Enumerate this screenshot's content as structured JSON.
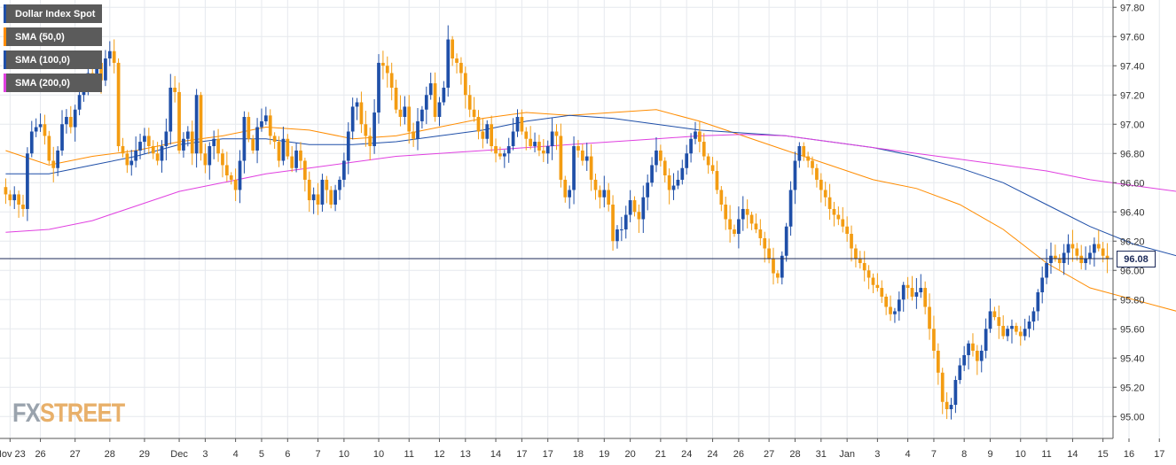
{
  "chart_data": {
    "type": "candlestick",
    "title": "Dollar Index Spot",
    "y_ticks": [
      "97.80",
      "97.60",
      "97.40",
      "97.20",
      "97.00",
      "96.80",
      "96.60",
      "96.40",
      "96.20",
      "96.00",
      "95.80",
      "95.60",
      "95.40",
      "95.20",
      "95.00"
    ],
    "ylim": [
      94.85,
      97.85
    ],
    "current_price": 96.08,
    "current_price_label": "96.08",
    "x_ticks": [
      {
        "label": "Nov 23",
        "i": 1
      },
      {
        "label": "26",
        "i": 8
      },
      {
        "label": "27",
        "i": 16
      },
      {
        "label": "28",
        "i": 24
      },
      {
        "label": "29",
        "i": 32
      },
      {
        "label": "Dec",
        "i": 40
      },
      {
        "label": "3",
        "i": 46
      },
      {
        "label": "4",
        "i": 53
      },
      {
        "label": "5",
        "i": 59
      },
      {
        "label": "6",
        "i": 65
      },
      {
        "label": "7",
        "i": 72
      },
      {
        "label": "10",
        "i": 78
      },
      {
        "label": "10",
        "i": 86
      },
      {
        "label": "11",
        "i": 93
      },
      {
        "label": "12",
        "i": 100
      },
      {
        "label": "13",
        "i": 106
      },
      {
        "label": "14",
        "i": 113
      },
      {
        "label": "17",
        "i": 119
      },
      {
        "label": "17",
        "i": 125
      },
      {
        "label": "18",
        "i": 132
      },
      {
        "label": "19",
        "i": 138
      },
      {
        "label": "20",
        "i": 144
      },
      {
        "label": "21",
        "i": 151
      },
      {
        "label": "24",
        "i": 157
      },
      {
        "label": "24",
        "i": 163
      },
      {
        "label": "26",
        "i": 169
      },
      {
        "label": "27",
        "i": 176
      },
      {
        "label": "28",
        "i": 182
      },
      {
        "label": "31",
        "i": 188
      },
      {
        "label": "Jan",
        "i": 194
      },
      {
        "label": "3",
        "i": 201
      },
      {
        "label": "4",
        "i": 208
      },
      {
        "label": "7",
        "i": 214
      },
      {
        "label": "8",
        "i": 221
      },
      {
        "label": "9",
        "i": 227
      },
      {
        "label": "10",
        "i": 234
      },
      {
        "label": "11",
        "i": 240
      },
      {
        "label": "14",
        "i": 246
      },
      {
        "label": "15",
        "i": 253
      },
      {
        "label": "16",
        "i": 259
      },
      {
        "label": "17",
        "i": 266
      },
      {
        "label": "18",
        "i": 272
      }
    ],
    "candles_close": [
      96.52,
      96.48,
      96.52,
      96.45,
      96.42,
      96.8,
      96.95,
      96.98,
      97.0,
      96.92,
      96.75,
      96.7,
      96.82,
      97.0,
      97.05,
      96.98,
      97.1,
      97.2,
      97.28,
      97.35,
      97.32,
      97.42,
      97.3,
      97.45,
      97.5,
      97.42,
      96.85,
      96.8,
      96.72,
      96.75,
      96.82,
      96.88,
      96.92,
      96.85,
      96.8,
      96.75,
      96.85,
      96.95,
      97.25,
      97.22,
      96.82,
      96.9,
      96.95,
      96.8,
      97.2,
      96.8,
      96.72,
      96.85,
      96.9,
      96.8,
      96.72,
      96.65,
      96.62,
      96.55,
      96.75,
      97.05,
      96.9,
      96.82,
      96.98,
      97.02,
      97.06,
      96.92,
      96.88,
      96.75,
      96.9,
      96.78,
      96.7,
      96.82,
      96.75,
      96.62,
      96.48,
      96.52,
      96.45,
      96.62,
      96.55,
      96.45,
      96.55,
      96.62,
      96.75,
      96.95,
      97.12,
      97.15,
      97.0,
      96.92,
      96.85,
      97.08,
      97.42,
      97.4,
      97.35,
      97.25,
      97.1,
      97.05,
      97.12,
      96.95,
      96.9,
      97.02,
      97.1,
      97.2,
      97.28,
      97.05,
      97.15,
      97.25,
      97.58,
      97.45,
      97.42,
      97.35,
      97.2,
      97.1,
      97.05,
      96.95,
      96.9,
      97.0,
      96.85,
      96.8,
      96.78,
      96.8,
      96.85,
      96.95,
      97.05,
      96.95,
      96.9,
      96.85,
      96.88,
      96.82,
      96.8,
      96.85,
      96.95,
      96.92,
      96.62,
      96.5,
      96.55,
      96.85,
      96.82,
      96.75,
      96.78,
      96.62,
      96.55,
      96.5,
      96.55,
      96.45,
      96.2,
      96.28,
      96.28,
      96.38,
      96.48,
      96.4,
      96.35,
      96.5,
      96.6,
      96.72,
      96.82,
      96.75,
      96.65,
      96.55,
      96.58,
      96.62,
      96.7,
      96.8,
      96.9,
      96.95,
      96.88,
      96.78,
      96.72,
      96.68,
      96.55,
      96.45,
      96.35,
      96.28,
      96.25,
      96.35,
      96.42,
      96.38,
      96.32,
      96.28,
      96.22,
      96.15,
      96.08,
      95.98,
      95.95,
      96.1,
      96.3,
      96.55,
      96.75,
      96.85,
      96.78,
      96.75,
      96.7,
      96.62,
      96.55,
      96.5,
      96.42,
      96.38,
      96.35,
      96.3,
      96.25,
      96.15,
      96.08,
      96.05,
      96.0,
      95.95,
      95.9,
      95.88,
      95.82,
      95.75,
      95.7,
      95.72,
      95.8,
      95.9,
      95.88,
      95.82,
      95.85,
      95.88,
      95.75,
      95.6,
      95.45,
      95.3,
      95.1,
      95.05,
      95.08,
      95.25,
      95.35,
      95.42,
      95.5,
      95.45,
      95.38,
      95.45,
      95.6,
      95.72,
      95.68,
      95.62,
      95.55,
      95.6,
      95.62,
      95.58,
      95.55,
      95.6,
      95.65,
      95.72,
      95.85,
      95.95,
      96.05,
      96.1,
      96.08,
      96.05,
      96.12,
      96.18,
      96.15,
      96.1,
      96.05,
      96.08,
      96.12,
      96.18,
      96.15,
      96.1,
      96.08
    ],
    "series": [
      {
        "name": "SMA (50,0)",
        "color": "#ff8c00",
        "points": [
          [
            0,
            96.82
          ],
          [
            10,
            96.72
          ],
          [
            20,
            96.78
          ],
          [
            30,
            96.82
          ],
          [
            40,
            96.88
          ],
          [
            50,
            96.92
          ],
          [
            60,
            96.98
          ],
          [
            70,
            96.96
          ],
          [
            80,
            96.9
          ],
          [
            90,
            96.92
          ],
          [
            100,
            96.98
          ],
          [
            110,
            97.04
          ],
          [
            120,
            97.08
          ],
          [
            130,
            97.06
          ],
          [
            140,
            97.08
          ],
          [
            150,
            97.1
          ],
          [
            160,
            97.02
          ],
          [
            170,
            96.92
          ],
          [
            180,
            96.82
          ],
          [
            190,
            96.72
          ],
          [
            200,
            96.62
          ],
          [
            210,
            96.56
          ],
          [
            220,
            96.45
          ],
          [
            230,
            96.28
          ],
          [
            240,
            96.05
          ],
          [
            250,
            95.88
          ],
          [
            260,
            95.8
          ],
          [
            270,
            95.72
          ],
          [
            282,
            95.72
          ]
        ]
      },
      {
        "name": "SMA (100,0)",
        "color": "#1f4fa8",
        "points": [
          [
            0,
            96.66
          ],
          [
            10,
            96.66
          ],
          [
            20,
            96.72
          ],
          [
            30,
            96.78
          ],
          [
            40,
            96.86
          ],
          [
            50,
            96.9
          ],
          [
            60,
            96.9
          ],
          [
            70,
            96.86
          ],
          [
            80,
            96.86
          ],
          [
            90,
            96.88
          ],
          [
            100,
            96.92
          ],
          [
            110,
            96.96
          ],
          [
            120,
            97.02
          ],
          [
            130,
            97.06
          ],
          [
            140,
            97.04
          ],
          [
            150,
            97.0
          ],
          [
            160,
            96.96
          ],
          [
            170,
            96.94
          ],
          [
            180,
            96.92
          ],
          [
            190,
            96.88
          ],
          [
            200,
            96.84
          ],
          [
            210,
            96.78
          ],
          [
            220,
            96.7
          ],
          [
            230,
            96.6
          ],
          [
            240,
            96.45
          ],
          [
            250,
            96.3
          ],
          [
            260,
            96.18
          ],
          [
            270,
            96.1
          ],
          [
            282,
            96.08
          ]
        ]
      },
      {
        "name": "SMA (200,0)",
        "color": "#e040e0",
        "points": [
          [
            0,
            96.26
          ],
          [
            10,
            96.28
          ],
          [
            20,
            96.34
          ],
          [
            30,
            96.44
          ],
          [
            40,
            96.54
          ],
          [
            50,
            96.6
          ],
          [
            60,
            96.66
          ],
          [
            70,
            96.7
          ],
          [
            80,
            96.74
          ],
          [
            90,
            96.78
          ],
          [
            100,
            96.8
          ],
          [
            110,
            96.82
          ],
          [
            120,
            96.84
          ],
          [
            130,
            96.86
          ],
          [
            140,
            96.88
          ],
          [
            150,
            96.9
          ],
          [
            160,
            96.92
          ],
          [
            170,
            96.93
          ],
          [
            180,
            96.92
          ],
          [
            190,
            96.88
          ],
          [
            200,
            96.84
          ],
          [
            210,
            96.8
          ],
          [
            220,
            96.76
          ],
          [
            230,
            96.72
          ],
          [
            240,
            96.68
          ],
          [
            250,
            96.62
          ],
          [
            260,
            96.58
          ],
          [
            270,
            96.54
          ],
          [
            282,
            96.52
          ]
        ]
      }
    ],
    "up_color": "#1f4fa8",
    "down_color": "#f39c12",
    "grid": true
  },
  "legend": [
    {
      "label": "Dollar Index Spot",
      "color": "#1f4fa8"
    },
    {
      "label": "SMA (50,0)",
      "color": "#ff8c00"
    },
    {
      "label": "SMA (100,0)",
      "color": "#1f4fa8"
    },
    {
      "label": "SMA (200,0)",
      "color": "#e040e0"
    }
  ],
  "watermark": "FXSTREET"
}
